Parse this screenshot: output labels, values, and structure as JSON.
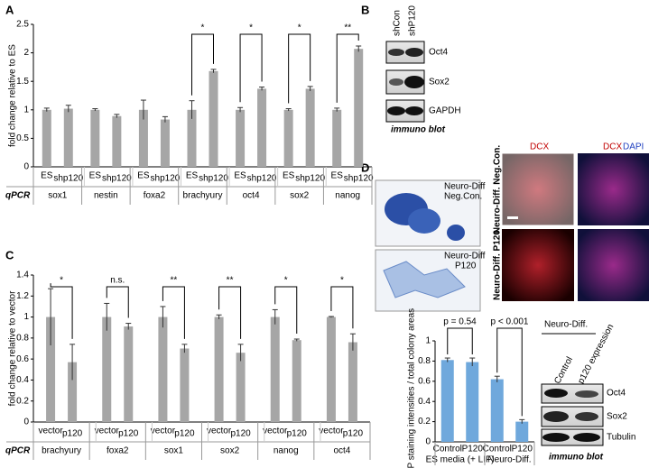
{
  "panel_labels": [
    "A",
    "B",
    "C",
    "D"
  ],
  "chart_data": [
    {
      "type": "bar",
      "y_label": "fold change relative to ES",
      "x_label": "qPCR",
      "categories": [
        "sox1",
        "nestin",
        "foxa2",
        "brachyury",
        "oct4",
        "sox2",
        "nanog"
      ],
      "series": [
        {
          "name": "ES",
          "color": "#a6a6a6",
          "values": [
            1,
            1,
            1,
            1,
            1,
            1,
            1
          ],
          "errors": [
            0.03,
            0.02,
            0.17,
            0.16,
            0.04,
            0.02,
            0.03
          ]
        },
        {
          "name": "shp120",
          "color": "#a6a6a6",
          "values": [
            1.02,
            0.89,
            0.83,
            1.68,
            1.37,
            1.37,
            2.07
          ],
          "errors": [
            0.06,
            0.03,
            0.05,
            0.03,
            0.03,
            0.04,
            0.05
          ]
        }
      ],
      "significance": [
        null,
        null,
        null,
        "*",
        "*",
        "*",
        "**"
      ],
      "ylim": [
        0,
        2.5
      ],
      "yticks": [
        0,
        0.5,
        1,
        1.5,
        2,
        2.5
      ]
    },
    {
      "type": "bar",
      "y_label": "fold change relative to vector",
      "x_label": "qPCR",
      "categories": [
        "brachyury",
        "foxa2",
        "sox1",
        "sox2",
        "nanog",
        "oct4"
      ],
      "series": [
        {
          "name": "vector",
          "color": "#a6a6a6",
          "values": [
            1,
            1,
            1,
            1,
            1,
            1
          ],
          "errors": [
            0.27,
            0.13,
            0.1,
            0.02,
            0.07,
            0.005
          ]
        },
        {
          "name": "p120",
          "color": "#a6a6a6",
          "values": [
            0.57,
            0.91,
            0.7,
            0.66,
            0.78,
            0.76
          ],
          "errors": [
            0.17,
            0.03,
            0.04,
            0.08,
            0.01,
            0.08
          ]
        }
      ],
      "significance": [
        "*",
        "n.s.",
        "**",
        "**",
        "*",
        "*"
      ],
      "ylim": [
        0,
        1.4
      ],
      "yticks": [
        0,
        0.2,
        0.4,
        0.6,
        0.8,
        1,
        1.2,
        1.4
      ]
    },
    {
      "type": "bar",
      "y_label": "AP staining intensities / total colony areas",
      "categories": [
        "Control",
        "P120",
        "Control",
        "P120"
      ],
      "values": [
        0.81,
        0.79,
        0.62,
        0.2
      ],
      "errors": [
        0.02,
        0.04,
        0.03,
        0.02
      ],
      "color": "#6fa8dc",
      "groups": [
        "ES media (+ LIF)",
        "Neuro-Diff."
      ],
      "significance": [
        "p = 0.54",
        "p < 0.001"
      ],
      "ylim": [
        0,
        1
      ],
      "yticks": [
        0,
        0.2,
        0.4,
        0.6,
        0.8,
        1
      ]
    }
  ],
  "blot_b": {
    "lanes": [
      "shCon",
      "shP120"
    ],
    "proteins": [
      "Oct4",
      "Sox2",
      "GAPDH"
    ],
    "caption": "immuno blot"
  },
  "ap_labels": [
    [
      "Neuro-Diff",
      "Neg.Con."
    ],
    [
      "Neuro-Diff",
      "P120"
    ]
  ],
  "if_columns": {
    "left": "DCX",
    "right_red": "DCX",
    "right_blue": "DAPI"
  },
  "if_rows": [
    "Neuro-Diff. Neg.Con.",
    "Neuro-Diff. P120"
  ],
  "blot_d": {
    "heading": "Neuro-Diff.",
    "lanes": [
      "Control",
      "p120 expression"
    ],
    "proteins": [
      "Oct4",
      "Sox2",
      "Tubulin"
    ],
    "caption": "immuno blot"
  }
}
